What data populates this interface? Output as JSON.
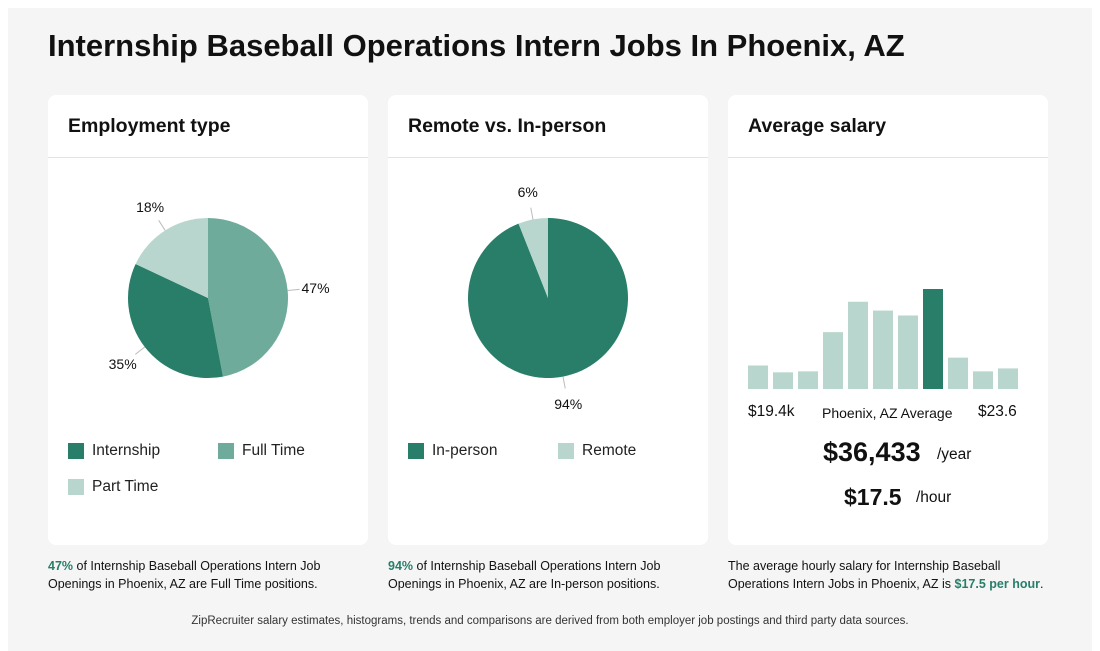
{
  "page": {
    "title": "Internship Baseball Operations Intern Jobs In Phoenix, AZ"
  },
  "colors": {
    "dark": "#287e69",
    "medium": "#6fab9b",
    "light": "#b9d6ce",
    "accent": "#287e69"
  },
  "employment": {
    "title": "Employment type",
    "legend": [
      "Internship",
      "Full Time",
      "Part Time"
    ]
  },
  "remote": {
    "title": "Remote vs. In-person",
    "legend": [
      "In-person",
      "Remote"
    ]
  },
  "salary": {
    "title": "Average salary",
    "min_label": "$19.4k",
    "avg_label": "Phoenix, AZ Average",
    "max_label": "$23.6",
    "yearly_value": "$36,433",
    "yearly_unit": "/year",
    "hourly_value": "$17.5",
    "hourly_unit": "/hour"
  },
  "captions": {
    "employment_hl": "47%",
    "employment_rest": " of Internship Baseball Operations Intern Job Openings in Phoenix, AZ are Full Time positions.",
    "remote_hl": "94%",
    "remote_rest": " of Internship Baseball Operations Intern Job Openings in Phoenix, AZ are In-person positions.",
    "salary_pre": "The average hourly salary for Internship Baseball Operations Intern Jobs in Phoenix, AZ is ",
    "salary_hl": "$17.5 per hour",
    "salary_post": "."
  },
  "footer": "ZipRecruiter salary estimates, histograms, trends and comparisons are derived from both employer job postings and third party data sources.",
  "chart_data": [
    {
      "type": "pie",
      "title": "Employment type",
      "categories": [
        "Full Time",
        "Internship",
        "Part Time"
      ],
      "values": [
        47,
        35,
        18
      ],
      "labels": [
        "47%",
        "35%",
        "18%"
      ]
    },
    {
      "type": "pie",
      "title": "Remote vs. In-person",
      "categories": [
        "In-person",
        "Remote"
      ],
      "values": [
        94,
        6
      ],
      "labels": [
        "94%",
        "6%"
      ]
    },
    {
      "type": "bar",
      "title": "Average salary",
      "values": [
        24,
        17,
        18,
        58,
        89,
        80,
        75,
        102,
        32,
        18,
        21
      ],
      "highlight_index": 7,
      "xlabel_min": "$19.4k",
      "xlabel_max": "$23.6",
      "ylim": [
        0,
        102
      ]
    }
  ]
}
